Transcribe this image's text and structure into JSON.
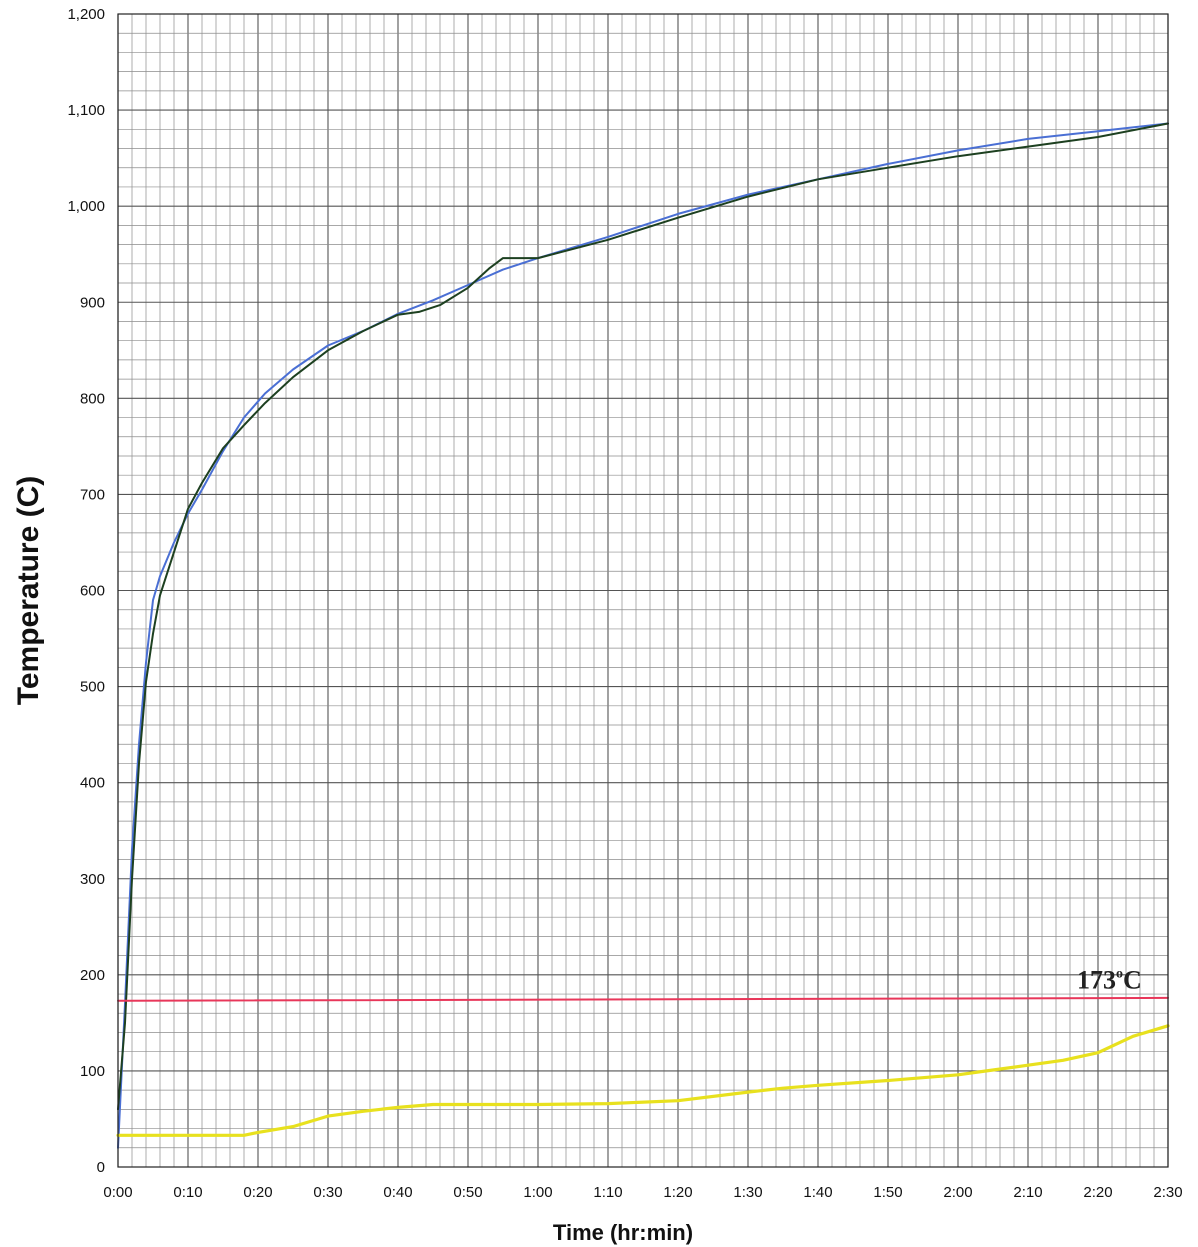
{
  "chart_data": {
    "type": "line",
    "title": "",
    "xlabel": "Time (hr:min)",
    "ylabel": "Temperature (C)",
    "xlim": [
      0,
      150
    ],
    "ylim": [
      0,
      1200
    ],
    "x_unit": "minutes",
    "x_tick_values": [
      0,
      10,
      20,
      30,
      40,
      50,
      60,
      70,
      80,
      90,
      100,
      110,
      120,
      130,
      140,
      150
    ],
    "x_tick_labels": [
      "0:00",
      "0:10",
      "0:20",
      "0:30",
      "0:40",
      "0:50",
      "1:00",
      "1:10",
      "1:20",
      "1:30",
      "1:40",
      "1:50",
      "2:00",
      "2:10",
      "2:20",
      "2:30"
    ],
    "y_tick_values": [
      0,
      100,
      200,
      300,
      400,
      500,
      600,
      700,
      800,
      900,
      1000,
      1100,
      1200
    ],
    "y_tick_labels": [
      "0",
      "100",
      "200",
      "300",
      "400",
      "500",
      "600",
      "700",
      "800",
      "900",
      "1,000",
      "1,100",
      "1,200"
    ],
    "grid": true,
    "legend": "none",
    "series": [
      {
        "color": "#4a6fd4",
        "points": [
          [
            0,
            20
          ],
          [
            1,
            170
          ],
          [
            2,
            330
          ],
          [
            3,
            440
          ],
          [
            4,
            525
          ],
          [
            5,
            590
          ],
          [
            6,
            615
          ],
          [
            8,
            650
          ],
          [
            10,
            680
          ],
          [
            12,
            705
          ],
          [
            15,
            745
          ],
          [
            18,
            780
          ],
          [
            21,
            805
          ],
          [
            25,
            830
          ],
          [
            30,
            855
          ],
          [
            35,
            870
          ],
          [
            40,
            888
          ],
          [
            45,
            902
          ],
          [
            50,
            918
          ],
          [
            55,
            934
          ],
          [
            60,
            946
          ],
          [
            70,
            968
          ],
          [
            80,
            992
          ],
          [
            90,
            1012
          ],
          [
            100,
            1028
          ],
          [
            110,
            1044
          ],
          [
            120,
            1058
          ],
          [
            130,
            1070
          ],
          [
            140,
            1078
          ],
          [
            150,
            1086
          ]
        ]
      },
      {
        "color": "#1d4020",
        "points": [
          [
            0,
            60
          ],
          [
            1,
            150
          ],
          [
            2,
            300
          ],
          [
            3,
            420
          ],
          [
            4,
            505
          ],
          [
            5,
            555
          ],
          [
            6,
            595
          ],
          [
            8,
            640
          ],
          [
            10,
            685
          ],
          [
            12,
            712
          ],
          [
            15,
            748
          ],
          [
            18,
            772
          ],
          [
            21,
            795
          ],
          [
            25,
            822
          ],
          [
            30,
            850
          ],
          [
            35,
            870
          ],
          [
            40,
            887
          ],
          [
            43,
            890
          ],
          [
            46,
            897
          ],
          [
            50,
            915
          ],
          [
            53,
            935
          ],
          [
            55,
            946
          ],
          [
            60,
            946
          ],
          [
            70,
            965
          ],
          [
            80,
            988
          ],
          [
            90,
            1010
          ],
          [
            100,
            1028
          ],
          [
            110,
            1040
          ],
          [
            120,
            1052
          ],
          [
            130,
            1062
          ],
          [
            140,
            1072
          ],
          [
            150,
            1086
          ]
        ]
      },
      {
        "color": "#e8e11e",
        "points": [
          [
            0,
            33
          ],
          [
            10,
            33
          ],
          [
            18,
            33
          ],
          [
            20,
            36
          ],
          [
            25,
            42
          ],
          [
            30,
            53
          ],
          [
            35,
            58
          ],
          [
            40,
            62
          ],
          [
            45,
            65
          ],
          [
            60,
            65
          ],
          [
            70,
            66
          ],
          [
            80,
            69
          ],
          [
            90,
            78
          ],
          [
            95,
            82
          ],
          [
            100,
            85
          ],
          [
            110,
            90
          ],
          [
            120,
            96
          ],
          [
            125,
            101
          ],
          [
            130,
            106
          ],
          [
            135,
            111
          ],
          [
            140,
            119
          ],
          [
            145,
            136
          ],
          [
            150,
            147
          ]
        ]
      },
      {
        "name": "173°C",
        "color": "#e8375a",
        "points": [
          [
            0,
            173
          ],
          [
            150,
            176
          ]
        ]
      }
    ],
    "annotations": [
      {
        "text": "173",
        "superscript": "o",
        "suffix": "C",
        "x": 137,
        "y": 197
      }
    ]
  }
}
